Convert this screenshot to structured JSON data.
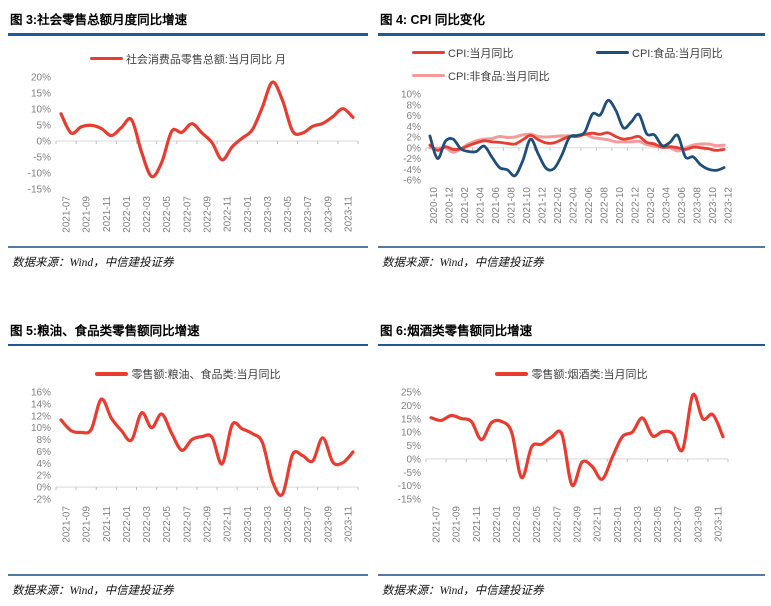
{
  "colors": {
    "red": "#e73c30",
    "navy": "#1f4e79",
    "pink": "#f49c9c",
    "title_rule": "#1e5a96",
    "footer_rule": "#4e7ba4",
    "axis_label": "#808080",
    "axis_line": "#d9d9d9",
    "tick_mark": "#bfbfbf",
    "legend_text": "#3f3f3f"
  },
  "chart_data": [
    {
      "id": "figure-3",
      "type": "line",
      "title": "图 3:社会零售总额月度同比增速",
      "source": "数据来源：Wind，中信建投证券",
      "ylabel": "",
      "xlabel": "",
      "ylim": [
        -15,
        20
      ],
      "ytick_step": 5,
      "grid": false,
      "legend_position": "top",
      "x": [
        "2021-07",
        "2021-08",
        "2021-09",
        "2021-10",
        "2021-11",
        "2021-12",
        "2022-01",
        "2022-02",
        "2022-03",
        "2022-04",
        "2022-05",
        "2022-06",
        "2022-07",
        "2022-08",
        "2022-09",
        "2022-10",
        "2022-11",
        "2022-12",
        "2023-01",
        "2023-02",
        "2023-03",
        "2023-04",
        "2023-05",
        "2023-06",
        "2023-07",
        "2023-08",
        "2023-09",
        "2023-10",
        "2023-11",
        "2023-12"
      ],
      "x_tick_labels": [
        "2021-07",
        "2021-09",
        "2021-11",
        "2022-01",
        "2022-03",
        "2022-05",
        "2022-07",
        "2022-09",
        "2022-11",
        "2023-01",
        "2023-03",
        "2023-05",
        "2023-07",
        "2023-09",
        "2023-11"
      ],
      "series": [
        {
          "name": "社会消费品零售总额:当月同比 月",
          "color": "#e73c30",
          "width": 3.2,
          "values": [
            8.5,
            2.5,
            4.4,
            4.9,
            3.9,
            1.7,
            4.2,
            6.7,
            -3.5,
            -11.1,
            -6.7,
            3.1,
            2.7,
            5.4,
            2.5,
            -0.5,
            -5.9,
            -1.8,
            0.9,
            3.5,
            10.6,
            18.4,
            12.7,
            3.1,
            2.5,
            4.6,
            5.5,
            7.6,
            10.1,
            7.4
          ]
        }
      ]
    },
    {
      "id": "figure-4",
      "type": "line",
      "title": "图 4: CPI 同比变化",
      "source": "数据来源：Wind，中信建投证券",
      "ylabel": "",
      "xlabel": "",
      "ylim": [
        -6,
        10
      ],
      "ytick_step": 2,
      "grid": false,
      "legend_position": "top",
      "x": [
        "2020-10",
        "2020-11",
        "2020-12",
        "2021-01",
        "2021-02",
        "2021-03",
        "2021-04",
        "2021-05",
        "2021-06",
        "2021-07",
        "2021-08",
        "2021-09",
        "2021-10",
        "2021-11",
        "2021-12",
        "2022-01",
        "2022-02",
        "2022-03",
        "2022-04",
        "2022-05",
        "2022-06",
        "2022-07",
        "2022-08",
        "2022-09",
        "2022-10",
        "2022-11",
        "2022-12",
        "2023-01",
        "2023-02",
        "2023-03",
        "2023-04",
        "2023-05",
        "2023-06",
        "2023-07",
        "2023-08",
        "2023-09",
        "2023-10",
        "2023-11",
        "2023-12"
      ],
      "x_tick_labels": [
        "2020-10",
        "2020-12",
        "2021-02",
        "2021-04",
        "2021-06",
        "2021-08",
        "2021-10",
        "2021-12",
        "2022-02",
        "2022-04",
        "2022-06",
        "2022-08",
        "2022-10",
        "2022-12",
        "2023-02",
        "2023-04",
        "2023-06",
        "2023-08",
        "2023-10",
        "2023-12"
      ],
      "series": [
        {
          "name": "CPI:当月同比",
          "color": "#e73c30",
          "width": 2.8,
          "values": [
            0.5,
            -0.5,
            0.2,
            -0.3,
            -0.2,
            0.4,
            0.9,
            1.3,
            1.1,
            1.0,
            0.8,
            0.7,
            1.5,
            2.3,
            1.5,
            0.9,
            0.9,
            1.5,
            2.1,
            2.1,
            2.5,
            2.7,
            2.5,
            2.8,
            2.1,
            1.6,
            1.8,
            2.1,
            1.0,
            0.7,
            0.1,
            0.2,
            0.0,
            -0.3,
            0.1,
            0.0,
            -0.2,
            -0.5,
            -0.3
          ]
        },
        {
          "name": "CPI:食品:当月同比",
          "color": "#1f4e79",
          "width": 2.8,
          "values": [
            2.2,
            -2.0,
            1.2,
            1.6,
            -0.2,
            -0.7,
            -0.7,
            0.3,
            -1.7,
            -3.7,
            -4.1,
            -5.2,
            -2.4,
            1.6,
            -1.2,
            -3.8,
            -3.9,
            -1.5,
            1.9,
            2.3,
            2.9,
            6.3,
            6.1,
            8.8,
            7.0,
            3.7,
            4.8,
            6.2,
            2.6,
            2.4,
            0.4,
            1.0,
            2.3,
            -1.7,
            -1.7,
            -3.2,
            -4.0,
            -4.2,
            -3.7
          ]
        },
        {
          "name": "CPI:非食品:当月同比",
          "color": "#f49c9c",
          "width": 3.0,
          "values": [
            0.0,
            -0.1,
            0.0,
            -0.8,
            -0.2,
            0.7,
            1.3,
            1.6,
            1.7,
            2.1,
            1.9,
            2.0,
            2.4,
            2.5,
            2.1,
            2.0,
            2.1,
            2.2,
            2.2,
            2.1,
            2.5,
            1.9,
            1.7,
            1.5,
            1.1,
            1.1,
            1.1,
            1.2,
            0.6,
            0.3,
            0.1,
            0.0,
            -0.6,
            0.0,
            0.5,
            0.7,
            0.7,
            0.4,
            0.5
          ]
        }
      ]
    },
    {
      "id": "figure-5",
      "type": "line",
      "title": "图 5:粮油、食品类零售额同比增速",
      "source": "数据来源：Wind，中信建投证券",
      "ylabel": "",
      "xlabel": "",
      "ylim": [
        -2,
        16
      ],
      "ytick_step": 2,
      "grid": false,
      "legend_position": "top",
      "x": [
        "2021-07",
        "2021-08",
        "2021-09",
        "2021-10",
        "2021-11",
        "2021-12",
        "2022-01",
        "2022-02",
        "2022-03",
        "2022-04",
        "2022-05",
        "2022-06",
        "2022-07",
        "2022-08",
        "2022-09",
        "2022-10",
        "2022-11",
        "2022-12",
        "2023-01",
        "2023-02",
        "2023-03",
        "2023-04",
        "2023-05",
        "2023-06",
        "2023-07",
        "2023-08",
        "2023-09",
        "2023-10",
        "2023-11",
        "2023-12"
      ],
      "x_tick_labels": [
        "2021-07",
        "2021-09",
        "2021-11",
        "2022-01",
        "2022-03",
        "2022-05",
        "2022-07",
        "2022-09",
        "2022-11",
        "2023-01",
        "2023-03",
        "2023-05",
        "2023-07",
        "2023-09",
        "2023-11"
      ],
      "series": [
        {
          "name": "零售额:粮油、食品类:当月同比",
          "color": "#e73c30",
          "width": 3.2,
          "values": [
            11.3,
            9.5,
            9.2,
            9.7,
            14.8,
            11.6,
            9.5,
            7.9,
            12.5,
            10.0,
            12.3,
            9.0,
            6.2,
            8.0,
            8.5,
            8.4,
            3.9,
            10.5,
            9.8,
            9.0,
            7.5,
            1.0,
            -1.2,
            5.5,
            5.3,
            4.4,
            8.3,
            4.2,
            4.1,
            5.9
          ]
        }
      ]
    },
    {
      "id": "figure-6",
      "type": "line",
      "title": "图 6:烟酒类零售额同比增速",
      "source": "数据来源：Wind，中信建投证券",
      "ylabel": "",
      "xlabel": "",
      "ylim": [
        -15,
        25
      ],
      "ytick_step": 5,
      "grid": false,
      "legend_position": "top",
      "x": [
        "2021-07",
        "2021-08",
        "2021-09",
        "2021-10",
        "2021-11",
        "2021-12",
        "2022-01",
        "2022-02",
        "2022-03",
        "2022-04",
        "2022-05",
        "2022-06",
        "2022-07",
        "2022-08",
        "2022-09",
        "2022-10",
        "2022-11",
        "2022-12",
        "2023-01",
        "2023-02",
        "2023-03",
        "2023-04",
        "2023-05",
        "2023-06",
        "2023-07",
        "2023-08",
        "2023-09",
        "2023-10",
        "2023-11",
        "2023-12"
      ],
      "x_tick_labels": [
        "2021-07",
        "2021-09",
        "2021-11",
        "2022-01",
        "2022-03",
        "2022-05",
        "2022-07",
        "2022-09",
        "2022-11",
        "2023-01",
        "2023-03",
        "2023-05",
        "2023-07",
        "2023-09",
        "2023-11"
      ],
      "series": [
        {
          "name": "零售额:烟酒类:当月同比",
          "color": "#e73c30",
          "width": 3.2,
          "values": [
            15.4,
            14.4,
            16.2,
            15.1,
            14.0,
            7.2,
            13.5,
            14.0,
            10.0,
            -7.0,
            4.5,
            5.5,
            8.2,
            9.2,
            -9.8,
            -1.2,
            -2.8,
            -7.6,
            0.5,
            8.3,
            10.0,
            15.3,
            8.6,
            10.2,
            9.5,
            3.5,
            23.9,
            15.0,
            16.5,
            8.3
          ]
        }
      ]
    }
  ]
}
